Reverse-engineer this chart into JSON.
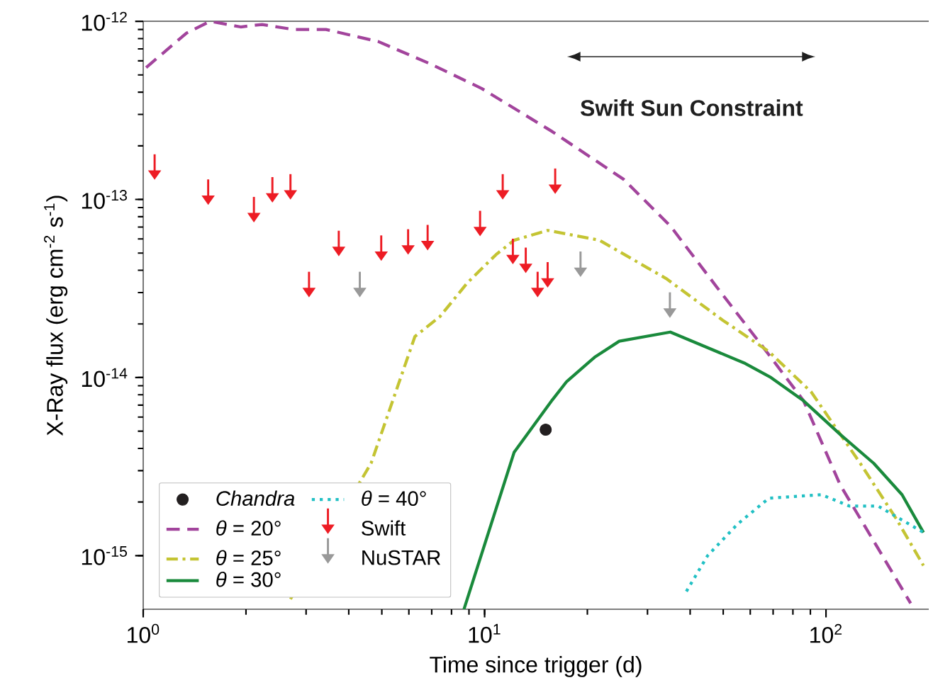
{
  "chart_data": {
    "type": "line",
    "xlabel": "Time since trigger (d)",
    "ylabel": "X-Ray flux (erg cm$^{-2}$ s$^{-1}$)",
    "log": "xy",
    "xlim": [
      1,
      200
    ],
    "ylim": [
      5e-16,
      1e-12
    ],
    "xticks": [
      {
        "value": 1,
        "label": "10$^{0}$"
      },
      {
        "value": 10,
        "label": "10$^{1}$"
      },
      {
        "value": 100,
        "label": "10$^{2}$"
      }
    ],
    "yticks": [
      {
        "value": 1e-15,
        "label": "10$^{-15}$"
      },
      {
        "value": 1e-14,
        "label": "10$^{-14}$"
      },
      {
        "value": 1e-13,
        "label": "10$^{-13}$"
      },
      {
        "value": 1e-12,
        "label": "10$^{-12}$"
      }
    ],
    "legend": "bottom left",
    "annotations": [
      "Swift Sun Constraint"
    ],
    "series": [
      {
        "name": "Chandra",
        "type": "scatter",
        "marker": "circle",
        "color": "#231f20",
        "x": [
          15.1
        ],
        "values": [
          5.1e-15
        ]
      },
      {
        "name": "*θ* = 20°",
        "line_style": "dashed",
        "color": "#a2449c",
        "x": [
          1.02,
          1.34,
          1.57,
          1.93,
          2.23,
          2.75,
          3.43,
          4.88,
          6.89,
          9.8,
          15.8,
          25.5,
          35,
          48,
          66,
          86,
          110,
          142,
          177
        ],
        "values": [
          5.5e-13,
          8.6e-13,
          1e-12,
          9.3e-13,
          9.6e-13,
          9e-13,
          9e-13,
          7.7e-13,
          5.8e-13,
          4.2e-13,
          2.4e-13,
          1.3e-13,
          7.1e-14,
          3.2e-14,
          1.45e-14,
          7.4e-15,
          2.5e-15,
          1.1e-15,
          5.4e-16
        ]
      },
      {
        "name": "*θ* = 25°",
        "line_style": "dashdot",
        "color": "#c4c433",
        "x": [
          2.7,
          4.65,
          6.25,
          7.4,
          8.9,
          10.8,
          12.2,
          15.3,
          21.7,
          34,
          49.8,
          68,
          90.5,
          126,
          161,
          193
        ],
        "values": [
          5.7e-16,
          3.3e-15,
          1.7e-14,
          2.2e-14,
          3.4e-14,
          4.9e-14,
          5.9e-14,
          6.7e-14,
          5.9e-14,
          3.6e-14,
          2.1e-14,
          1.4e-14,
          8.3e-15,
          3.3e-15,
          1.6e-15,
          8.8e-16
        ]
      },
      {
        "name": "*θ* = 30°",
        "line_style": "solid",
        "color": "#1a8a3c",
        "x": [
          8.7,
          12.2,
          15.8,
          17.4,
          21,
          24.8,
          35,
          58,
          69,
          86,
          110,
          138,
          167,
          193
        ],
        "values": [
          5e-16,
          3.8e-15,
          7.5e-15,
          9.5e-15,
          1.3e-14,
          1.6e-14,
          1.8e-14,
          1.2e-14,
          1e-14,
          7.4e-15,
          4.8e-15,
          3.3e-15,
          2.2e-15,
          1.35e-15
        ]
      },
      {
        "name": "*θ* = 40°",
        "line_style": "dotted",
        "color": "#22c0c4",
        "x": [
          39,
          45,
          55,
          68,
          97,
          117,
          142,
          193
        ],
        "values": [
          6.3e-16,
          1e-15,
          1.5e-15,
          2.1e-15,
          2.2e-15,
          1.9e-15,
          1.9e-15,
          1.35e-15
        ]
      },
      {
        "name": "Swift",
        "type": "scatter",
        "marker": "triangle",
        "color": "#ed1c24",
        "x": [
          1.08,
          1.55,
          2.11,
          2.39,
          2.7,
          3.06,
          3.74,
          4.98,
          5.97,
          6.81,
          9.7,
          11.3,
          12.1,
          13.2,
          14.3,
          15.3,
          16.1
        ],
        "values": [
          1.37e-13,
          9.9e-14,
          7.9e-14,
          1.02e-13,
          1.06e-13,
          3e-14,
          5.1e-14,
          4.8e-14,
          5.2e-14,
          5.5e-14,
          6.6e-14,
          1.06e-13,
          4.6e-14,
          4.1e-14,
          3e-14,
          3.4e-14,
          1.14e-13
        ]
      },
      {
        "name": "NuSTAR",
        "type": "scatter",
        "marker": "triangle",
        "color": "#999999",
        "x": [
          4.31,
          19.1,
          34.9
        ],
        "values": [
          3e-14,
          3.9e-14,
          2.3e-14
        ]
      }
    ]
  }
}
